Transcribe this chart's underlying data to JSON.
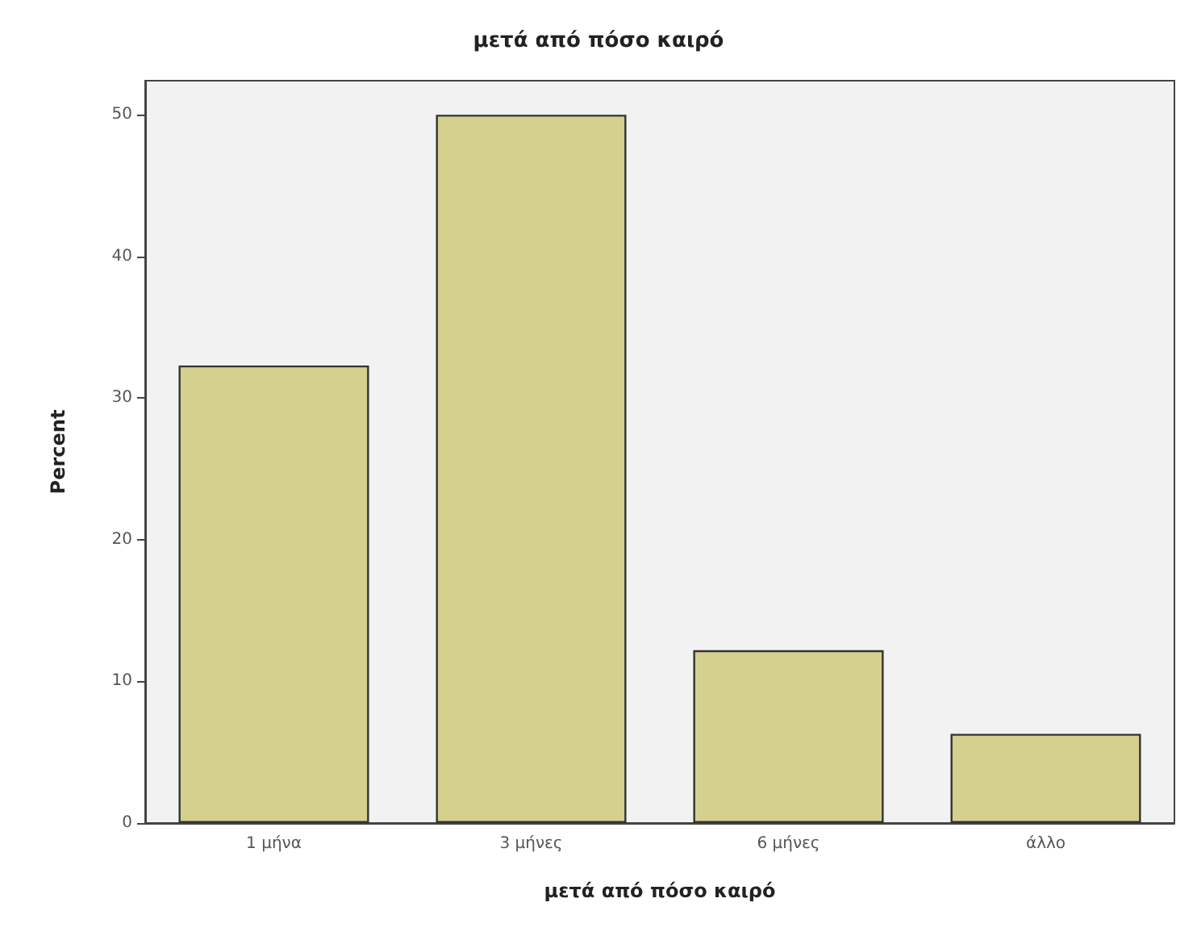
{
  "chart_data": {
    "type": "bar",
    "title": "μετά από πόσο καιρό",
    "xlabel": "μετά από πόσο καιρό",
    "ylabel": "Percent",
    "categories": [
      "1 μήνα",
      "3 μήνες",
      "6 μήνες",
      "άλλο"
    ],
    "values": [
      32.3,
      50,
      12.2,
      6.3
    ],
    "color": "#d6d08f",
    "ylim": [
      0,
      52.4
    ],
    "yticks": [
      0,
      10,
      20,
      30,
      40,
      50
    ],
    "grid": false
  }
}
